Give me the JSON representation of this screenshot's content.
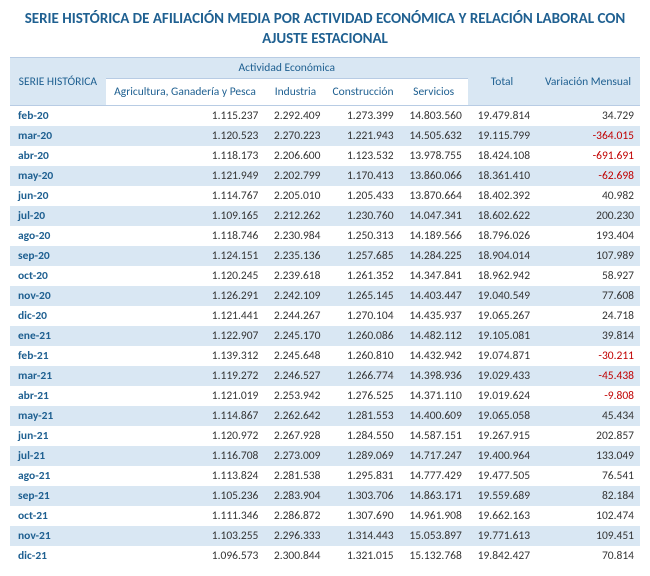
{
  "title": "SERIE HISTÓRICA DE AFILIACIÓN MEDIA POR ACTIVIDAD ECONÓMICA Y RELACIÓN LABORAL CON AJUSTE ESTACIONAL",
  "headers": {
    "serie": "SERIE HISTÓRICA",
    "actividad": "Actividad Económica",
    "agricultura": "Agricultura, Ganadería y Pesca",
    "industria": "Industria",
    "construccion": "Construcción",
    "servicios": "Servicios",
    "total": "Total",
    "variacion": "Variación Mensual"
  },
  "rows": [
    {
      "p": "feb-20",
      "a": "1.115.237",
      "i": "2.292.409",
      "c": "1.273.399",
      "s": "14.803.560",
      "t": "19.479.814",
      "v": "34.729",
      "neg": false
    },
    {
      "p": "mar-20",
      "a": "1.120.523",
      "i": "2.270.223",
      "c": "1.221.943",
      "s": "14.505.632",
      "t": "19.115.799",
      "v": "-364.015",
      "neg": true
    },
    {
      "p": "abr-20",
      "a": "1.118.173",
      "i": "2.206.600",
      "c": "1.123.532",
      "s": "13.978.755",
      "t": "18.424.108",
      "v": "-691.691",
      "neg": true
    },
    {
      "p": "may-20",
      "a": "1.121.949",
      "i": "2.202.799",
      "c": "1.170.413",
      "s": "13.860.066",
      "t": "18.361.410",
      "v": "-62.698",
      "neg": true
    },
    {
      "p": "jun-20",
      "a": "1.114.767",
      "i": "2.205.010",
      "c": "1.205.433",
      "s": "13.870.664",
      "t": "18.402.392",
      "v": "40.982",
      "neg": false
    },
    {
      "p": "jul-20",
      "a": "1.109.165",
      "i": "2.212.262",
      "c": "1.230.760",
      "s": "14.047.341",
      "t": "18.602.622",
      "v": "200.230",
      "neg": false
    },
    {
      "p": "ago-20",
      "a": "1.118.746",
      "i": "2.230.984",
      "c": "1.250.313",
      "s": "14.189.566",
      "t": "18.796.026",
      "v": "193.404",
      "neg": false
    },
    {
      "p": "sep-20",
      "a": "1.124.151",
      "i": "2.235.136",
      "c": "1.257.685",
      "s": "14.284.225",
      "t": "18.904.014",
      "v": "107.989",
      "neg": false
    },
    {
      "p": "oct-20",
      "a": "1.120.245",
      "i": "2.239.618",
      "c": "1.261.352",
      "s": "14.347.841",
      "t": "18.962.942",
      "v": "58.927",
      "neg": false
    },
    {
      "p": "nov-20",
      "a": "1.126.291",
      "i": "2.242.109",
      "c": "1.265.145",
      "s": "14.403.447",
      "t": "19.040.549",
      "v": "77.608",
      "neg": false
    },
    {
      "p": "dic-20",
      "a": "1.121.441",
      "i": "2.244.267",
      "c": "1.270.104",
      "s": "14.435.937",
      "t": "19.065.267",
      "v": "24.718",
      "neg": false
    },
    {
      "p": "ene-21",
      "a": "1.122.907",
      "i": "2.245.170",
      "c": "1.260.086",
      "s": "14.482.112",
      "t": "19.105.081",
      "v": "39.814",
      "neg": false
    },
    {
      "p": "feb-21",
      "a": "1.139.312",
      "i": "2.245.648",
      "c": "1.260.810",
      "s": "14.432.942",
      "t": "19.074.871",
      "v": "-30.211",
      "neg": true
    },
    {
      "p": "mar-21",
      "a": "1.119.272",
      "i": "2.246.527",
      "c": "1.266.774",
      "s": "14.398.936",
      "t": "19.029.433",
      "v": "-45.438",
      "neg": true
    },
    {
      "p": "abr-21",
      "a": "1.121.019",
      "i": "2.253.942",
      "c": "1.276.525",
      "s": "14.371.110",
      "t": "19.019.624",
      "v": "-9.808",
      "neg": true
    },
    {
      "p": "may-21",
      "a": "1.114.867",
      "i": "2.262.642",
      "c": "1.281.553",
      "s": "14.400.609",
      "t": "19.065.058",
      "v": "45.434",
      "neg": false
    },
    {
      "p": "jun-21",
      "a": "1.120.972",
      "i": "2.267.928",
      "c": "1.284.550",
      "s": "14.587.151",
      "t": "19.267.915",
      "v": "202.857",
      "neg": false
    },
    {
      "p": "jul-21",
      "a": "1.116.708",
      "i": "2.273.009",
      "c": "1.289.069",
      "s": "14.717.247",
      "t": "19.400.964",
      "v": "133.049",
      "neg": false
    },
    {
      "p": "ago-21",
      "a": "1.113.824",
      "i": "2.281.538",
      "c": "1.295.831",
      "s": "14.777.429",
      "t": "19.477.505",
      "v": "76.541",
      "neg": false
    },
    {
      "p": "sep-21",
      "a": "1.105.236",
      "i": "2.283.904",
      "c": "1.303.706",
      "s": "14.863.171",
      "t": "19.559.689",
      "v": "82.184",
      "neg": false
    },
    {
      "p": "oct-21",
      "a": "1.111.346",
      "i": "2.286.872",
      "c": "1.307.690",
      "s": "14.961.908",
      "t": "19.662.163",
      "v": "102.474",
      "neg": false
    },
    {
      "p": "nov-21",
      "a": "1.103.255",
      "i": "2.296.333",
      "c": "1.314.443",
      "s": "15.053.897",
      "t": "19.771.613",
      "v": "109.451",
      "neg": false
    },
    {
      "p": "dic-21",
      "a": "1.096.573",
      "i": "2.300.844",
      "c": "1.321.015",
      "s": "15.132.768",
      "t": "19.842.427",
      "v": "70.814",
      "neg": false
    }
  ]
}
